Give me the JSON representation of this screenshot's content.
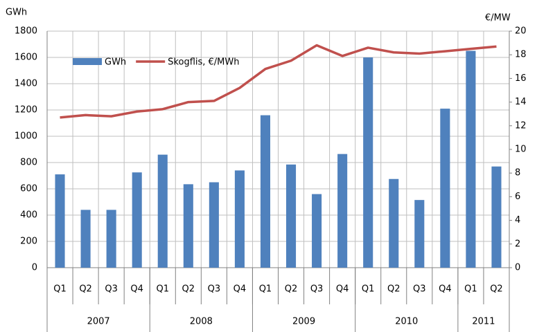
{
  "chart_data": {
    "type": "bar_line",
    "y_label": "GWh",
    "y2_label": "€/MW",
    "categories": [
      "Q1",
      "Q2",
      "Q3",
      "Q4",
      "Q1",
      "Q2",
      "Q3",
      "Q4",
      "Q1",
      "Q2",
      "Q3",
      "Q4",
      "Q1",
      "Q2",
      "Q3",
      "Q4",
      "Q1",
      "Q2"
    ],
    "groups": [
      {
        "label": "2007",
        "size": 4
      },
      {
        "label": "2008",
        "size": 4
      },
      {
        "label": "2009",
        "size": 4
      },
      {
        "label": "2010",
        "size": 4
      },
      {
        "label": "2011",
        "size": 2
      }
    ],
    "series": [
      {
        "name": "GWh",
        "color": "#4f81bd",
        "type": "bar",
        "values": [
          710,
          440,
          440,
          725,
          860,
          635,
          650,
          740,
          1160,
          785,
          560,
          865,
          1600,
          675,
          515,
          1210,
          1650,
          770
        ]
      },
      {
        "name": "Skogflis, €/MWh",
        "color": "#c0504d",
        "type": "line",
        "axis": "y2",
        "values": [
          12.7,
          12.9,
          12.8,
          13.2,
          13.4,
          14.0,
          14.1,
          15.2,
          16.8,
          17.5,
          18.8,
          17.9,
          18.6,
          18.2,
          18.1,
          18.3,
          18.5,
          18.7
        ]
      }
    ],
    "ylim": [
      0,
      1800
    ],
    "yticks": [
      0,
      200,
      400,
      600,
      800,
      1000,
      1200,
      1400,
      1600,
      1800
    ],
    "y2lim": [
      0,
      20
    ],
    "y2ticks": [
      0,
      2,
      4,
      6,
      8,
      10,
      12,
      14,
      16,
      18,
      20
    ],
    "grid": true,
    "legend": "top-left"
  }
}
